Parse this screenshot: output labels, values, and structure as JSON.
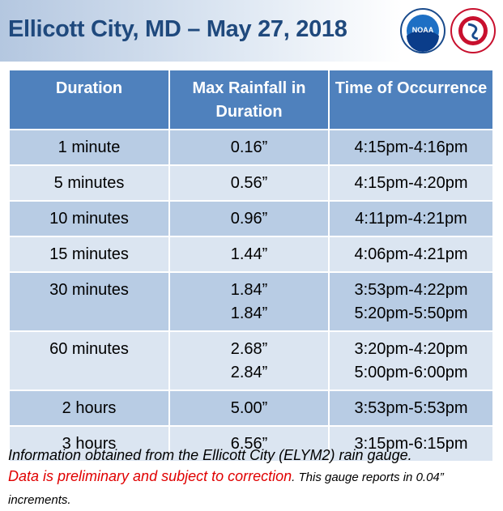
{
  "header": {
    "title": "Ellicott City, MD – May 27, 2018",
    "noaa_logo": "NOAA"
  },
  "table": {
    "columns": [
      "Duration",
      "Max Rainfall in Duration",
      "Time of Occurrence"
    ],
    "rows": [
      [
        "1 minute",
        [
          "0.16”"
        ],
        [
          "4:15pm-4:16pm"
        ]
      ],
      [
        "5 minutes",
        [
          "0.56”"
        ],
        [
          "4:15pm-4:20pm"
        ]
      ],
      [
        "10 minutes",
        [
          "0.96”"
        ],
        [
          "4:11pm-4:21pm"
        ]
      ],
      [
        "15 minutes",
        [
          "1.44”"
        ],
        [
          "4:06pm-4:21pm"
        ]
      ],
      [
        "30 minutes",
        [
          "1.84”",
          "1.84”"
        ],
        [
          "3:53pm-4:22pm",
          "5:20pm-5:50pm"
        ]
      ],
      [
        "60 minutes",
        [
          "2.68”",
          "2.84”"
        ],
        [
          "3:20pm-4:20pm",
          "5:00pm-6:00pm"
        ]
      ],
      [
        "2 hours",
        [
          "5.00”"
        ],
        [
          "3:53pm-5:53pm"
        ]
      ],
      [
        "3 hours",
        [
          "6.56”"
        ],
        [
          "3:15pm-6:15pm"
        ]
      ]
    ]
  },
  "footer": {
    "source": "Information obtained from the Ellicott City (ELYM2) rain gauge.",
    "warning": "Data is preliminary and subject to correction",
    "note": ". This gauge reports in 0.04” increments."
  }
}
